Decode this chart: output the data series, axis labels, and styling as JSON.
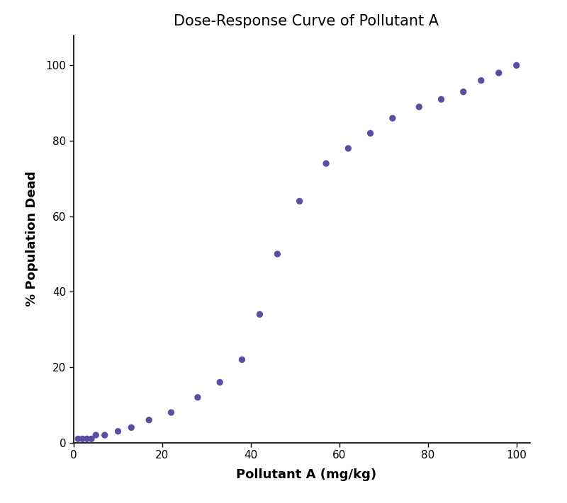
{
  "title": "Dose-Response Curve of Pollutant A",
  "xlabel": "Pollutant A (mg/kg)",
  "ylabel": "% Population Dead",
  "dot_color": "#5B4EA0",
  "xlim": [
    0,
    105
  ],
  "ylim": [
    0,
    108
  ],
  "xticks": [
    0,
    20,
    40,
    60,
    80,
    100
  ],
  "yticks": [
    0,
    20,
    40,
    60,
    80,
    100
  ],
  "x": [
    1,
    2,
    3,
    4,
    5,
    7,
    10,
    13,
    17,
    22,
    28,
    33,
    38,
    42,
    46,
    51,
    57,
    62,
    67,
    72,
    78,
    83,
    88,
    92,
    96,
    100
  ],
  "y": [
    1,
    1,
    1,
    1,
    2,
    2,
    3,
    4,
    6,
    8,
    12,
    16,
    22,
    34,
    50,
    64,
    74,
    78,
    82,
    86,
    89,
    91,
    93,
    96,
    98,
    100
  ],
  "dot_size": 45,
  "title_fontsize": 15,
  "label_fontsize": 13,
  "tick_fontsize": 11,
  "title_fontweight": "normal",
  "label_fontweight": "bold",
  "figwidth": 8.0,
  "figheight": 7.11
}
